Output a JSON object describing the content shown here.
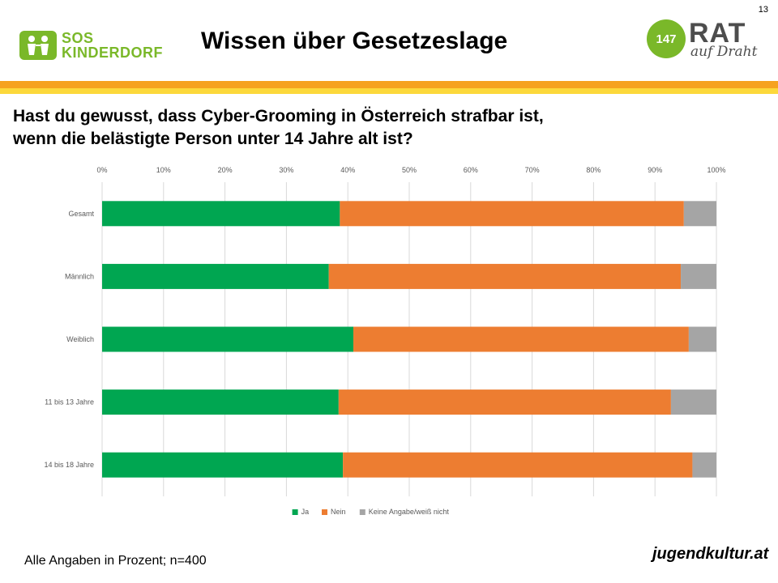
{
  "page_number": "13",
  "header": {
    "title": "Wissen über Gesetzeslage",
    "left_logo": {
      "line1": "SOS",
      "line2": "KINDERDORF"
    },
    "right_logo": {
      "number": "147",
      "word": "RAT",
      "sub": "auf Draht"
    }
  },
  "question": {
    "line1": "Hast du gewusst, dass Cyber-Grooming in Österreich strafbar ist,",
    "line2": "wenn die belästigte Person unter 14 Jahre alt ist?"
  },
  "footer": {
    "note": "Alle Angaben in Prozent; n=400",
    "logo_text": "jugendkultur.at"
  },
  "colors": {
    "ja": "#00a651",
    "nein": "#ed7d31",
    "keine": "#a5a5a5",
    "orange_band": "#f6a21f",
    "yellow_band": "#fcd83b"
  },
  "chart_data": {
    "type": "bar",
    "orientation": "horizontal",
    "stacked": true,
    "title": "",
    "xlabel": "",
    "ylabel": "",
    "xlim": [
      0,
      100
    ],
    "x_ticks": [
      "0%",
      "10%",
      "20%",
      "30%",
      "40%",
      "50%",
      "60%",
      "70%",
      "80%",
      "90%",
      "100%"
    ],
    "categories": [
      "Gesamt",
      "Männlich",
      "Weiblich",
      "11 bis 13 Jahre",
      "14 bis 18 Jahre"
    ],
    "series": [
      {
        "name": "Ja",
        "color": "#00a651",
        "values": [
          38.7,
          36.9,
          40.9,
          38.5,
          39.2
        ]
      },
      {
        "name": "Nein",
        "color": "#ed7d31",
        "values": [
          56.0,
          57.3,
          54.6,
          54.1,
          56.9
        ]
      },
      {
        "name": "Keine Angabe/weiß nicht",
        "color": "#a5a5a5",
        "values": [
          5.3,
          5.8,
          4.5,
          7.4,
          3.9
        ]
      }
    ],
    "legend_position": "bottom",
    "grid": true
  }
}
